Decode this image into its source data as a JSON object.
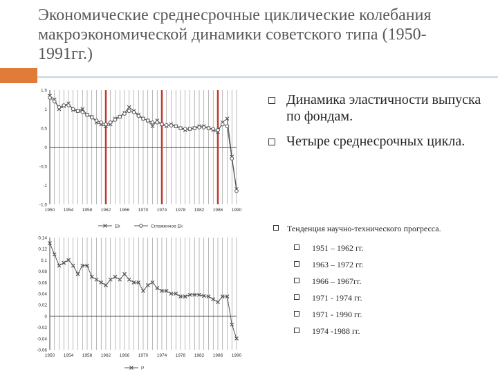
{
  "slide": {
    "title": "Экономические среднесрочные циклические колебания макроэкономической динамики советского типа (1950-1991гг.)",
    "accent_color": "#e07b39"
  },
  "bullets": [
    "Динамика эластичности выпуска по фондам.",
    "Четыре среднесрочных цикла."
  ],
  "trend": {
    "label": "Тенденция научно-технического прогресса.",
    "periods": [
      "1951 – 1962 гг.",
      "1963 – 1972 гг.",
      "1966 – 1967гг.",
      "1971 - 1974 гг.",
      "1971 - 1990 гг.",
      "1974 -1988 гг."
    ]
  },
  "chart_data": [
    {
      "type": "line",
      "x": [
        1950,
        1951,
        1952,
        1953,
        1954,
        1955,
        1956,
        1957,
        1958,
        1959,
        1960,
        1961,
        1962,
        1963,
        1964,
        1965,
        1966,
        1967,
        1968,
        1969,
        1970,
        1971,
        1972,
        1973,
        1974,
        1975,
        1976,
        1977,
        1978,
        1979,
        1980,
        1981,
        1982,
        1983,
        1984,
        1985,
        1986,
        1987,
        1988,
        1989,
        1990
      ],
      "series": [
        {
          "name": "Ek",
          "marker": "x",
          "values": [
            1.35,
            1.25,
            1.0,
            1.08,
            1.15,
            0.98,
            0.95,
            1.0,
            0.85,
            0.8,
            0.65,
            0.6,
            0.55,
            0.6,
            0.75,
            0.8,
            0.9,
            1.05,
            0.95,
            0.85,
            0.75,
            0.7,
            0.55,
            0.7,
            0.6,
            0.55,
            0.6,
            0.55,
            0.5,
            0.45,
            0.48,
            0.5,
            0.55,
            0.55,
            0.5,
            0.45,
            0.4,
            0.65,
            0.75,
            -0.25,
            -1.1
          ]
        },
        {
          "name": "Сглаженное Ek",
          "marker": "o",
          "values": [
            1.3,
            1.2,
            1.05,
            1.1,
            1.1,
            1.0,
            0.95,
            0.92,
            0.85,
            0.78,
            0.7,
            0.65,
            0.6,
            0.65,
            0.72,
            0.8,
            0.88,
            0.95,
            0.92,
            0.82,
            0.75,
            0.7,
            0.65,
            0.65,
            0.6,
            0.58,
            0.57,
            0.55,
            0.5,
            0.48,
            0.48,
            0.5,
            0.52,
            0.52,
            0.5,
            0.48,
            0.45,
            0.6,
            0.55,
            -0.3,
            -1.15
          ]
        }
      ],
      "ylim": [
        -1.5,
        1.5
      ],
      "yticks": [
        "1,5",
        "1",
        "0,5",
        "0",
        "-0,5",
        "-1",
        "-1,5"
      ],
      "xticks": [
        "1950",
        "1954",
        "1958",
        "1962",
        "1966",
        "1970",
        "1974",
        "1978",
        "1982",
        "1986",
        "1990"
      ],
      "red_lines": [
        1962,
        1974,
        1986
      ],
      "grid": true,
      "legend_position": "bottom",
      "colors": {
        "series": "#555555",
        "red_line": "#c0392b",
        "grid": "#888888"
      }
    },
    {
      "type": "line",
      "x": [
        1950,
        1951,
        1952,
        1953,
        1954,
        1955,
        1956,
        1957,
        1958,
        1959,
        1960,
        1961,
        1962,
        1963,
        1964,
        1965,
        1966,
        1967,
        1968,
        1969,
        1970,
        1971,
        1972,
        1973,
        1974,
        1975,
        1976,
        1977,
        1978,
        1979,
        1980,
        1981,
        1982,
        1983,
        1984,
        1985,
        1986,
        1987,
        1988,
        1989,
        1990
      ],
      "series": [
        {
          "name": "P",
          "marker": "x",
          "values": [
            0.13,
            0.11,
            0.09,
            0.095,
            0.1,
            0.09,
            0.075,
            0.09,
            0.09,
            0.07,
            0.065,
            0.06,
            0.055,
            0.065,
            0.07,
            0.065,
            0.075,
            0.065,
            0.06,
            0.06,
            0.045,
            0.055,
            0.06,
            0.05,
            0.045,
            0.045,
            0.04,
            0.04,
            0.035,
            0.035,
            0.038,
            0.038,
            0.038,
            0.036,
            0.035,
            0.03,
            0.025,
            0.035,
            0.035,
            -0.015,
            -0.04
          ]
        }
      ],
      "ylim": [
        -0.06,
        0.14
      ],
      "yticks": [
        "0,14",
        "0,12",
        "0,1",
        "0,08",
        "0,06",
        "0,04",
        "0,02",
        "0",
        "-0,02",
        "-0,04",
        "-0,06"
      ],
      "xticks": [
        "1950",
        "1954",
        "1958",
        "1962",
        "1966",
        "1970",
        "1974",
        "1978",
        "1982",
        "1986",
        "1990"
      ],
      "grid": true,
      "legend_position": "bottom",
      "colors": {
        "series": "#555555",
        "grid": "#888888"
      }
    }
  ]
}
